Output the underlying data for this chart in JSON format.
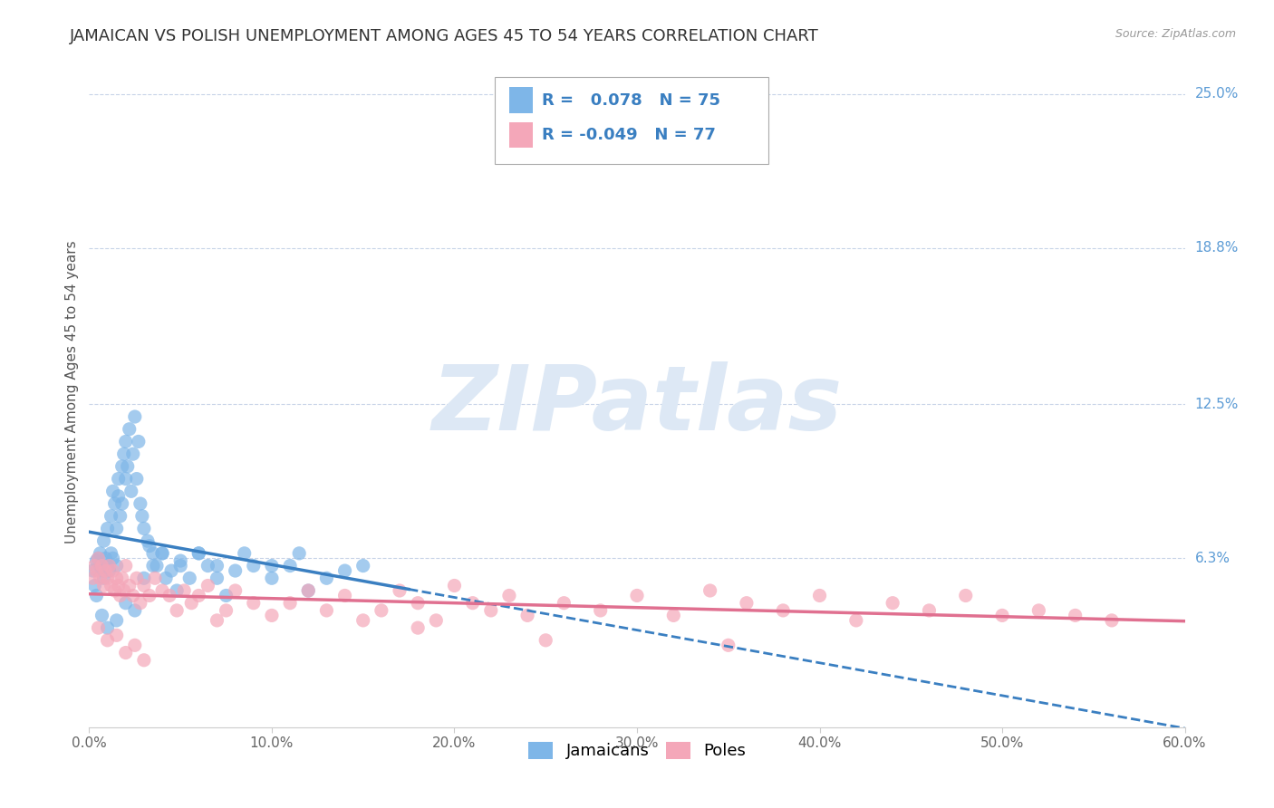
{
  "title": "JAMAICAN VS POLISH UNEMPLOYMENT AMONG AGES 45 TO 54 YEARS CORRELATION CHART",
  "source": "Source: ZipAtlas.com",
  "ylabel": "Unemployment Among Ages 45 to 54 years",
  "xlim": [
    0.0,
    0.6
  ],
  "ylim": [
    -0.005,
    0.265
  ],
  "xtick_labels": [
    "0.0%",
    "10.0%",
    "20.0%",
    "30.0%",
    "40.0%",
    "50.0%",
    "60.0%"
  ],
  "xtick_vals": [
    0.0,
    0.1,
    0.2,
    0.3,
    0.4,
    0.5,
    0.6
  ],
  "ytick_labels": [
    "6.3%",
    "12.5%",
    "18.8%",
    "25.0%"
  ],
  "ytick_vals": [
    0.063,
    0.125,
    0.188,
    0.25
  ],
  "r_jamaican": 0.078,
  "n_jamaican": 75,
  "r_polish": -0.049,
  "n_polish": 77,
  "color_jamaican": "#7eb6e8",
  "color_polish": "#f4a7b9",
  "line_color_jamaican": "#3a7fc1",
  "line_color_polish": "#e07090",
  "legend_labels": [
    "Jamaicans",
    "Poles"
  ],
  "jamaican_x": [
    0.002,
    0.003,
    0.004,
    0.005,
    0.006,
    0.006,
    0.007,
    0.008,
    0.008,
    0.009,
    0.01,
    0.01,
    0.011,
    0.012,
    0.012,
    0.013,
    0.013,
    0.014,
    0.015,
    0.015,
    0.016,
    0.016,
    0.017,
    0.018,
    0.018,
    0.019,
    0.02,
    0.02,
    0.021,
    0.022,
    0.023,
    0.024,
    0.025,
    0.026,
    0.027,
    0.028,
    0.029,
    0.03,
    0.032,
    0.033,
    0.035,
    0.037,
    0.04,
    0.042,
    0.045,
    0.048,
    0.05,
    0.055,
    0.06,
    0.065,
    0.07,
    0.075,
    0.08,
    0.09,
    0.1,
    0.11,
    0.12,
    0.13,
    0.14,
    0.15,
    0.004,
    0.007,
    0.01,
    0.015,
    0.02,
    0.025,
    0.03,
    0.035,
    0.04,
    0.05,
    0.06,
    0.07,
    0.085,
    0.1,
    0.115
  ],
  "jamaican_y": [
    0.058,
    0.052,
    0.062,
    0.063,
    0.06,
    0.065,
    0.058,
    0.055,
    0.07,
    0.063,
    0.06,
    0.075,
    0.058,
    0.065,
    0.08,
    0.063,
    0.09,
    0.085,
    0.06,
    0.075,
    0.095,
    0.088,
    0.08,
    0.1,
    0.085,
    0.105,
    0.095,
    0.11,
    0.1,
    0.115,
    0.09,
    0.105,
    0.12,
    0.095,
    0.11,
    0.085,
    0.08,
    0.075,
    0.07,
    0.068,
    0.065,
    0.06,
    0.065,
    0.055,
    0.058,
    0.05,
    0.06,
    0.055,
    0.065,
    0.06,
    0.055,
    0.048,
    0.058,
    0.06,
    0.055,
    0.06,
    0.05,
    0.055,
    0.058,
    0.06,
    0.048,
    0.04,
    0.035,
    0.038,
    0.045,
    0.042,
    0.055,
    0.06,
    0.065,
    0.062,
    0.065,
    0.06,
    0.065,
    0.06,
    0.065
  ],
  "polish_x": [
    0.002,
    0.003,
    0.004,
    0.005,
    0.006,
    0.007,
    0.008,
    0.009,
    0.01,
    0.011,
    0.012,
    0.013,
    0.014,
    0.015,
    0.016,
    0.017,
    0.018,
    0.019,
    0.02,
    0.022,
    0.024,
    0.026,
    0.028,
    0.03,
    0.033,
    0.036,
    0.04,
    0.044,
    0.048,
    0.052,
    0.056,
    0.06,
    0.065,
    0.07,
    0.075,
    0.08,
    0.09,
    0.1,
    0.11,
    0.12,
    0.13,
    0.14,
    0.15,
    0.16,
    0.17,
    0.18,
    0.19,
    0.2,
    0.21,
    0.22,
    0.23,
    0.24,
    0.26,
    0.28,
    0.3,
    0.32,
    0.34,
    0.36,
    0.38,
    0.4,
    0.42,
    0.44,
    0.46,
    0.48,
    0.5,
    0.52,
    0.54,
    0.56,
    0.005,
    0.01,
    0.015,
    0.02,
    0.025,
    0.03,
    0.18,
    0.25,
    0.35
  ],
  "polish_y": [
    0.055,
    0.06,
    0.058,
    0.063,
    0.055,
    0.06,
    0.052,
    0.058,
    0.055,
    0.06,
    0.052,
    0.058,
    0.05,
    0.055,
    0.052,
    0.048,
    0.055,
    0.05,
    0.06,
    0.052,
    0.048,
    0.055,
    0.045,
    0.052,
    0.048,
    0.055,
    0.05,
    0.048,
    0.042,
    0.05,
    0.045,
    0.048,
    0.052,
    0.038,
    0.042,
    0.05,
    0.045,
    0.04,
    0.045,
    0.05,
    0.042,
    0.048,
    0.038,
    0.042,
    0.05,
    0.045,
    0.038,
    0.052,
    0.045,
    0.042,
    0.048,
    0.04,
    0.045,
    0.042,
    0.048,
    0.04,
    0.05,
    0.045,
    0.042,
    0.048,
    0.038,
    0.045,
    0.042,
    0.048,
    0.04,
    0.042,
    0.04,
    0.038,
    0.035,
    0.03,
    0.032,
    0.025,
    0.028,
    0.022,
    0.035,
    0.03,
    0.028
  ],
  "grid_color": "#c8d4e8",
  "bg_color": "#ffffff",
  "title_fontsize": 13,
  "label_fontsize": 11,
  "tick_fontsize": 11,
  "legend_fontsize": 13,
  "watermark_color": "#dde8f5",
  "watermark_fontsize": 72,
  "jamaican_line_solid_end": 0.175,
  "polish_line_start_y": 0.063,
  "polish_line_end_y": 0.05
}
